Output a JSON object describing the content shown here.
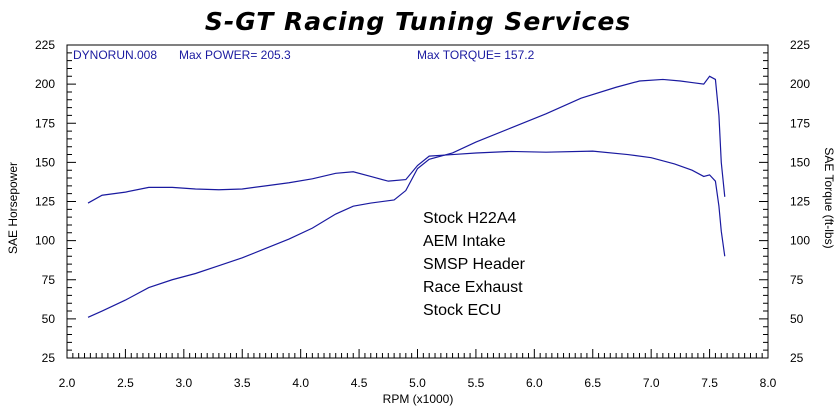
{
  "chart_data": {
    "type": "line",
    "title": "S-GT Racing Tuning Services",
    "xlabel": "RPM (x1000)",
    "ylabel_left": "SAE Horsepower",
    "ylabel_right": "SAE Torque (ft-lbs)",
    "xlim": [
      2.0,
      8.0
    ],
    "ylim": [
      25,
      225
    ],
    "x_ticks": [
      "2.0",
      "2.5",
      "3.0",
      "3.5",
      "4.0",
      "4.5",
      "5.0",
      "5.5",
      "6.0",
      "6.5",
      "7.0",
      "7.5",
      "8.0"
    ],
    "y_ticks": [
      "25",
      "50",
      "75",
      "100",
      "125",
      "150",
      "175",
      "200",
      "225"
    ],
    "header_run": "DYNORUN.008",
    "header_power": "Max POWER= 205.3",
    "header_torque": "Max TORQUE= 157.2",
    "notes": [
      "Stock H22A4",
      "AEM Intake",
      "SMSP Header",
      "Race Exhaust",
      "Stock ECU"
    ],
    "line_color": "#1a1aa0",
    "series": [
      {
        "points": [
          [
            2.18,
            51
          ],
          [
            2.3,
            55
          ],
          [
            2.5,
            62
          ],
          [
            2.7,
            70
          ],
          [
            2.9,
            75
          ],
          [
            3.1,
            79
          ],
          [
            3.3,
            84
          ],
          [
            3.5,
            89
          ],
          [
            3.7,
            95
          ],
          [
            3.9,
            101
          ],
          [
            4.1,
            108
          ],
          [
            4.3,
            117
          ],
          [
            4.45,
            122
          ],
          [
            4.6,
            124
          ],
          [
            4.8,
            126
          ],
          [
            4.9,
            132
          ],
          [
            5.0,
            146
          ],
          [
            5.1,
            152
          ],
          [
            5.3,
            156
          ],
          [
            5.5,
            163
          ],
          [
            5.8,
            172
          ],
          [
            6.1,
            181
          ],
          [
            6.4,
            191
          ],
          [
            6.7,
            198
          ],
          [
            6.9,
            202
          ],
          [
            7.1,
            203
          ],
          [
            7.25,
            202
          ],
          [
            7.35,
            201
          ],
          [
            7.45,
            200
          ],
          [
            7.5,
            205
          ],
          [
            7.55,
            203
          ],
          [
            7.58,
            180
          ],
          [
            7.6,
            150
          ],
          [
            7.63,
            128
          ]
        ]
      },
      {
        "points": [
          [
            2.18,
            124
          ],
          [
            2.3,
            129
          ],
          [
            2.5,
            131
          ],
          [
            2.7,
            134
          ],
          [
            2.9,
            134
          ],
          [
            3.1,
            133
          ],
          [
            3.3,
            132.5
          ],
          [
            3.5,
            133
          ],
          [
            3.7,
            135
          ],
          [
            3.9,
            137
          ],
          [
            4.1,
            139.5
          ],
          [
            4.3,
            143
          ],
          [
            4.45,
            144
          ],
          [
            4.6,
            141
          ],
          [
            4.75,
            138
          ],
          [
            4.9,
            139
          ],
          [
            5.0,
            148
          ],
          [
            5.1,
            154
          ],
          [
            5.3,
            155
          ],
          [
            5.5,
            156
          ],
          [
            5.8,
            157
          ],
          [
            6.1,
            156.5
          ],
          [
            6.5,
            157.2
          ],
          [
            6.8,
            155
          ],
          [
            7.0,
            153
          ],
          [
            7.2,
            149
          ],
          [
            7.35,
            145
          ],
          [
            7.45,
            141
          ],
          [
            7.5,
            142
          ],
          [
            7.55,
            138
          ],
          [
            7.58,
            122
          ],
          [
            7.6,
            106
          ],
          [
            7.63,
            90
          ]
        ]
      }
    ]
  }
}
